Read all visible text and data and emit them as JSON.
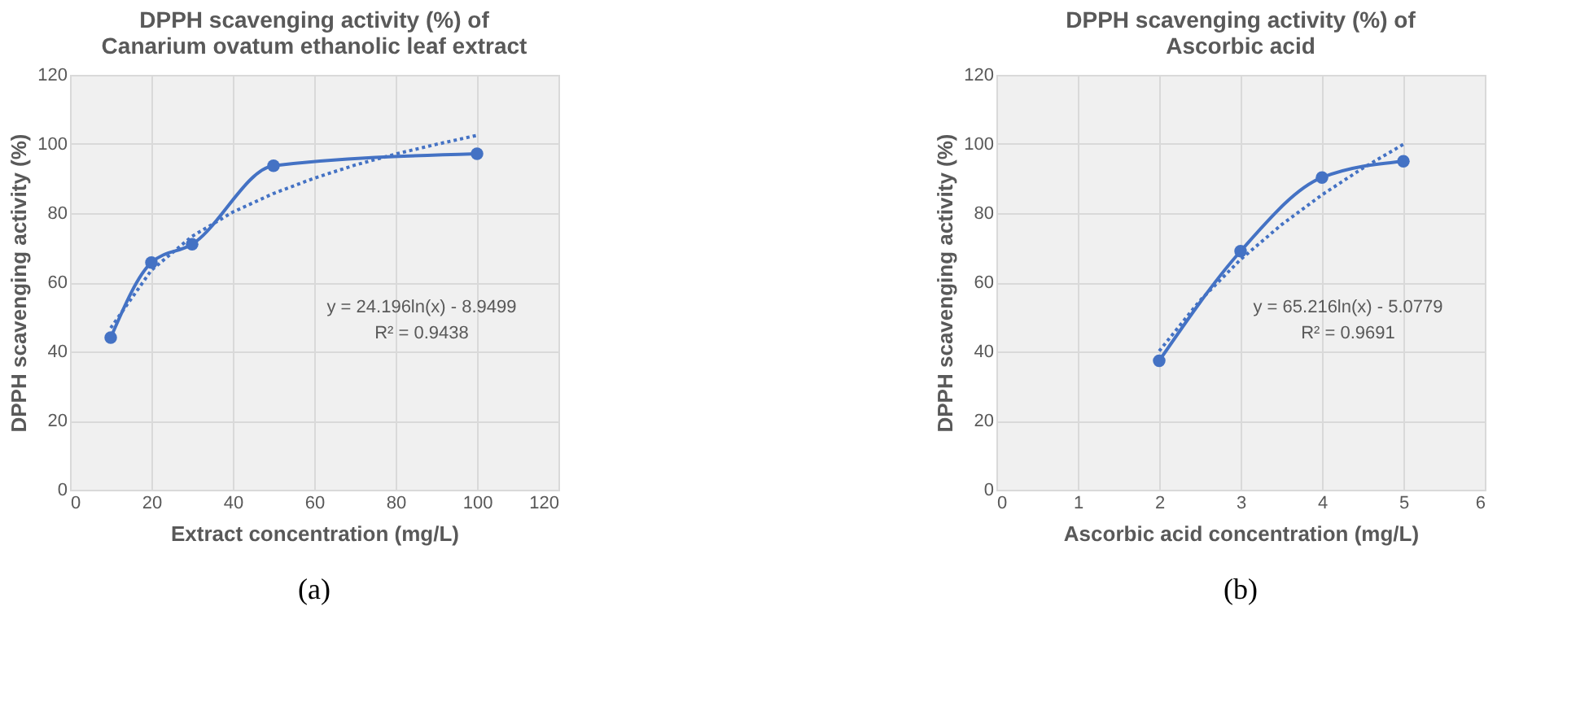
{
  "chart_data": [
    {
      "type": "line",
      "title": "DPPH scavenging activity (%) of\nCanarium ovatum ethanolic leaf extract",
      "xlabel": "Extract concentration (mg/L)",
      "ylabel": "DPPH scavenging activity (%)",
      "x": [
        10,
        20,
        30,
        50,
        100
      ],
      "xlim": [
        0,
        120
      ],
      "xticks": [
        0,
        20,
        40,
        60,
        80,
        100,
        120
      ],
      "ylim": [
        0,
        120
      ],
      "yticks": [
        0,
        20,
        40,
        60,
        80,
        100,
        120
      ],
      "grid": true,
      "series": [
        {
          "color": "#4472c4",
          "values": [
            44,
            65.7,
            71,
            93.7,
            97.2
          ],
          "marker": "circle",
          "line_style": "solid"
        },
        {
          "type": "line",
          "color": "#4472c4",
          "x": [
            10,
            20,
            30,
            40,
            50,
            60,
            70,
            80,
            90,
            100
          ],
          "values": [
            46.8,
            63.5,
            73.3,
            80.3,
            85.7,
            90.1,
            93.9,
            97.1,
            99.9,
            102.5
          ],
          "marker": "none",
          "line_style": "dotted"
        }
      ],
      "annotations": [
        "y = 24.196ln(x) - 8.9499",
        "R² = 0.9438",
        "(a)"
      ]
    },
    {
      "type": "line",
      "title": "DPPH scavenging activity (%) of\nAscorbic acid",
      "xlabel": "Ascorbic acid concentration (mg/L)",
      "ylabel": "DPPH scavenging activity (%)",
      "x": [
        2,
        3,
        4,
        5
      ],
      "xlim": [
        0,
        6
      ],
      "xticks": [
        0,
        1,
        2,
        3,
        4,
        5,
        6
      ],
      "ylim": [
        0,
        120
      ],
      "yticks": [
        0,
        20,
        40,
        60,
        80,
        100,
        120
      ],
      "grid": true,
      "series": [
        {
          "color": "#4472c4",
          "values": [
            37.3,
            69,
            90.3,
            95
          ],
          "marker": "circle",
          "line_style": "solid"
        },
        {
          "type": "line",
          "color": "#4472c4",
          "x": [
            2,
            2.5,
            3,
            3.5,
            4,
            4.5,
            5
          ],
          "values": [
            40.1,
            54.7,
            66.6,
            76.6,
            85.3,
            93,
            99.9
          ],
          "marker": "none",
          "line_style": "dotted"
        }
      ],
      "annotations": [
        "y = 65.216ln(x) - 5.0779",
        "R² = 0.9691",
        "(b)"
      ]
    }
  ]
}
